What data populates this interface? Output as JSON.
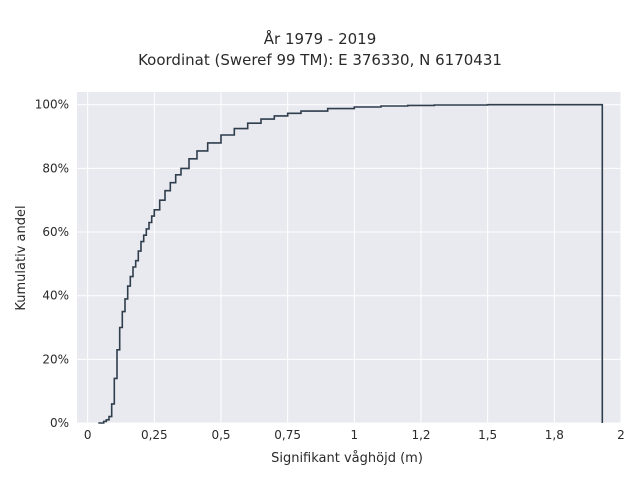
{
  "chart_data": {
    "type": "line",
    "subtype": "cumulative-step",
    "title": "År 1979 - 2019",
    "subtitle": "Koordinat (Sweref 99 TM): E 376330, N 6170431",
    "xlabel": "Signifikant våghöjd (m)",
    "ylabel": "Kumulativ andel",
    "xlim": [
      -0.04,
      2.0
    ],
    "ylim": [
      0,
      1.04
    ],
    "x_ticks": [
      0,
      0.25,
      0.5,
      0.75,
      1,
      1.25,
      1.5,
      1.75,
      2
    ],
    "x_tick_labels": [
      "0",
      "0,25",
      "0,5",
      "0,75",
      "1",
      "1,2",
      "1,5",
      "1,8",
      "2"
    ],
    "y_ticks": [
      0,
      0.2,
      0.4,
      0.6,
      0.8,
      1.0
    ],
    "y_tick_labels": [
      "0%",
      "20%",
      "40%",
      "60%",
      "80%",
      "100%"
    ],
    "grid": true,
    "background_color": "#e9e9f0",
    "grid_color": "#ffffff",
    "line_color": "#2f3e4d",
    "x": [
      0.04,
      0.06,
      0.07,
      0.08,
      0.09,
      0.1,
      0.11,
      0.12,
      0.13,
      0.14,
      0.15,
      0.16,
      0.17,
      0.18,
      0.19,
      0.2,
      0.21,
      0.22,
      0.23,
      0.24,
      0.25,
      0.27,
      0.29,
      0.31,
      0.33,
      0.35,
      0.38,
      0.41,
      0.45,
      0.5,
      0.55,
      0.6,
      0.65,
      0.7,
      0.75,
      0.8,
      0.9,
      1.0,
      1.1,
      1.2,
      1.3,
      1.5,
      1.93,
      1.93
    ],
    "y": [
      0.0,
      0.005,
      0.01,
      0.02,
      0.06,
      0.14,
      0.23,
      0.3,
      0.35,
      0.39,
      0.43,
      0.46,
      0.49,
      0.51,
      0.54,
      0.57,
      0.59,
      0.61,
      0.63,
      0.65,
      0.67,
      0.7,
      0.73,
      0.755,
      0.78,
      0.8,
      0.83,
      0.855,
      0.88,
      0.905,
      0.925,
      0.942,
      0.955,
      0.965,
      0.973,
      0.98,
      0.988,
      0.993,
      0.996,
      0.998,
      0.999,
      1.0,
      1.0,
      0.0
    ]
  }
}
